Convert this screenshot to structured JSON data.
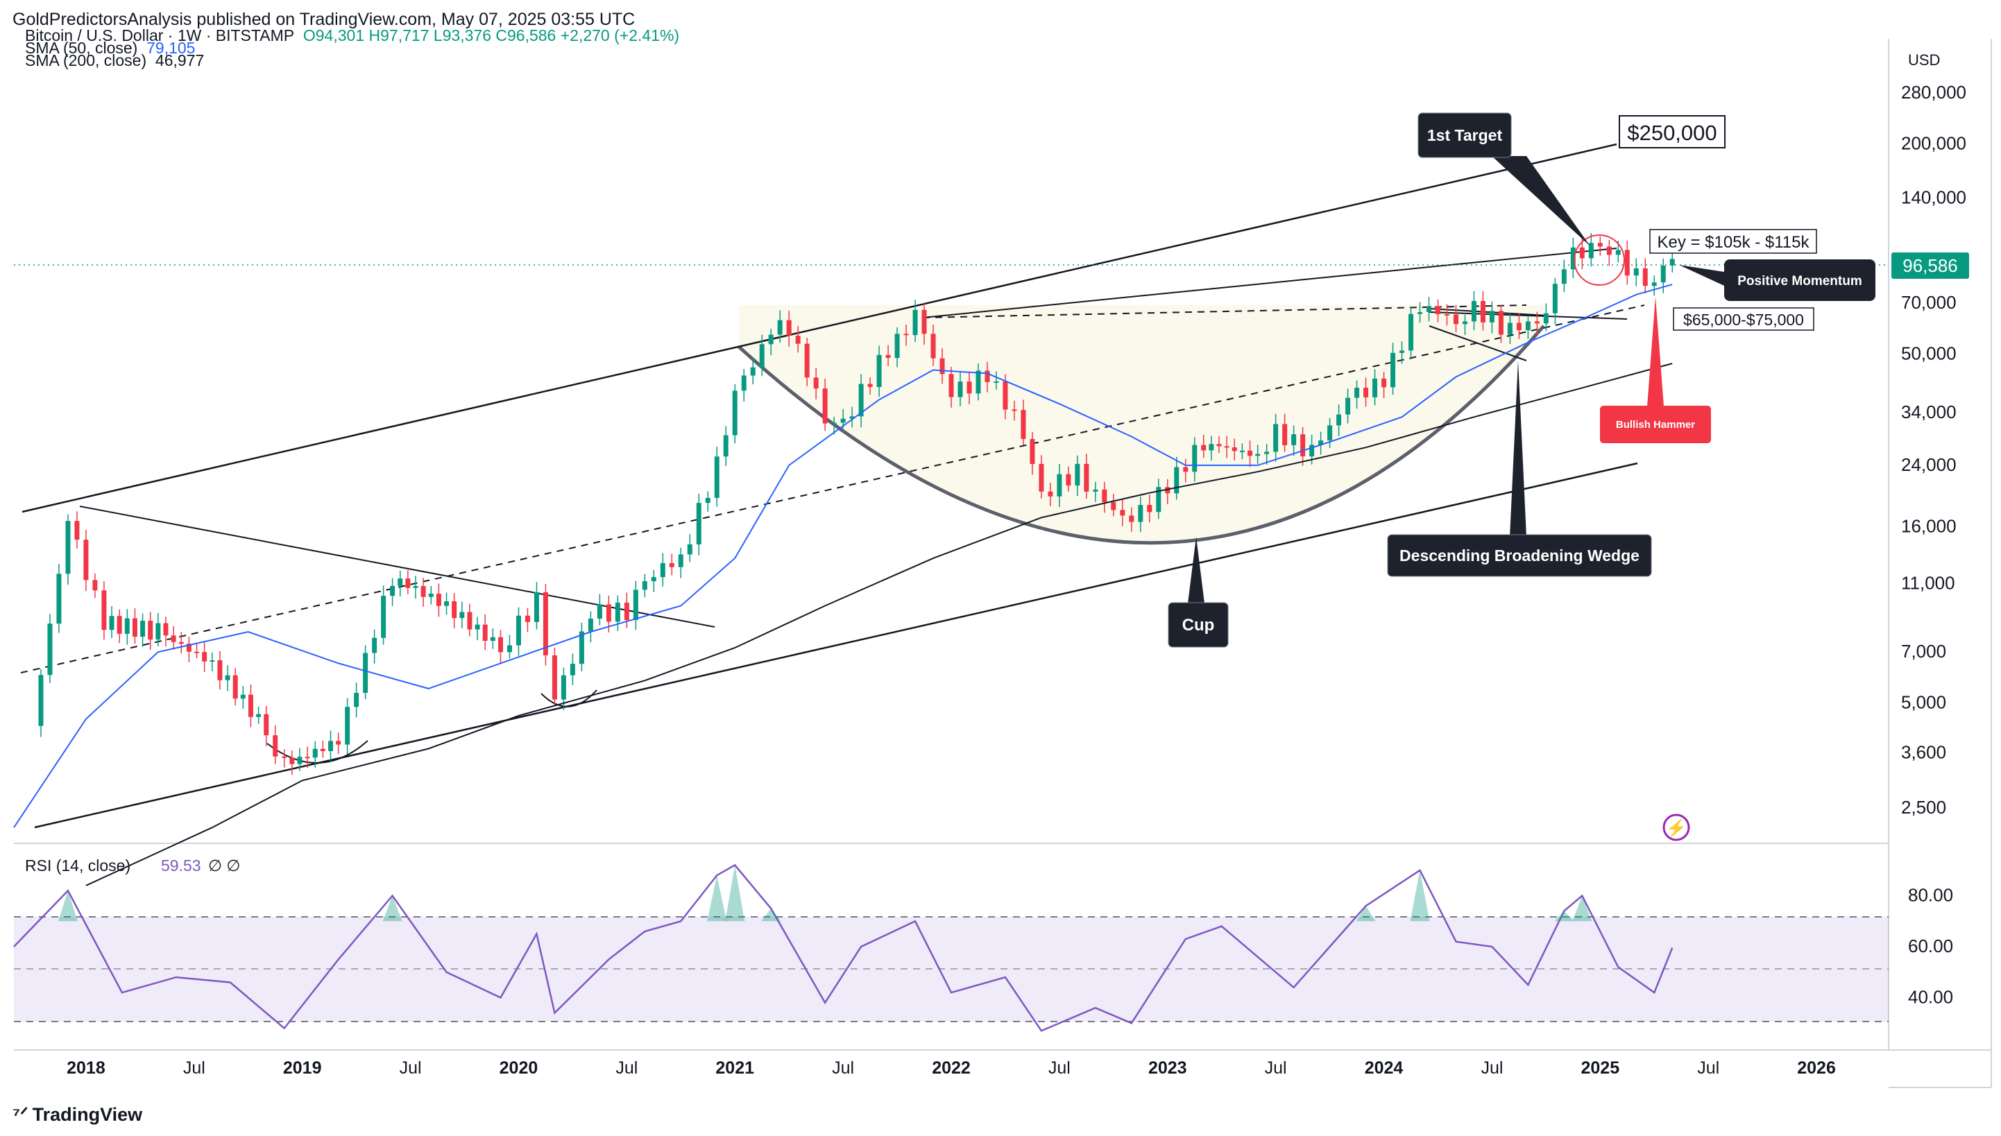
{
  "header": {
    "published_by": "GoldPredictorsAnalysis published on TradingView.com, May 07, 2025 03:55 UTC"
  },
  "legend": {
    "symbol": "Bitcoin / U.S. Dollar · 1W · BITSTAMP",
    "ohlc": "O94,301  H97,717  L93,376  C96,586  +2,270 (+2.41%)",
    "sma50_label": "SMA (50, close)",
    "sma50_value": "79,105",
    "sma200_label": "SMA (200, close)",
    "sma200_value": "46,977",
    "rsi_label": "RSI (14, close)",
    "rsi_value": "59.53",
    "rsi_extra": "∅  ∅"
  },
  "price_axis": {
    "currency": "USD",
    "ticks": [
      "280,000",
      "200,000",
      "140,000",
      "96,586",
      "70,000",
      "50,000",
      "34,000",
      "24,000",
      "16,000",
      "11,000",
      "7,000",
      "5,000",
      "3,600",
      "2,500"
    ],
    "current_price": "96,586"
  },
  "rsi_axis": {
    "ticks": [
      "80.00",
      "60.00",
      "40.00"
    ]
  },
  "time_axis": {
    "ticks": [
      "2018",
      "Jul",
      "2019",
      "Jul",
      "2020",
      "Jul",
      "2021",
      "Jul",
      "2022",
      "Jul",
      "2023",
      "Jul",
      "2024",
      "Jul",
      "2025",
      "Jul",
      "2026"
    ]
  },
  "annotations": {
    "first_target": "1st Target",
    "target_price": "$250,000",
    "key_zone": "Key = $105k - $115k",
    "positive_momentum": "Positive Momentum",
    "support_zone": "$65,000-$75,000",
    "bullish_hammer": "Bullish Hammer",
    "cup": "Cup",
    "wedge": "Descending Broadening Wedge"
  },
  "footer": {
    "brand": "TradingView"
  },
  "colors": {
    "up": "#089981",
    "down": "#f23645",
    "sma50": "#2962ff",
    "sma200": "#131722",
    "rsi": "#7e57c2",
    "callout": "#1e222d",
    "hammer": "#f23645"
  },
  "chart_data": {
    "type": "line",
    "title": "Bitcoin / U.S. Dollar · 1W · BITSTAMP",
    "scale": "log",
    "ylim": [
      2000,
      400000
    ],
    "x_start": "2017-09",
    "x_end": "2026-05",
    "series": [
      {
        "name": "Bitcoin / U.S. Dollar",
        "points": [
          [
            "2017-10",
            4300
          ],
          [
            "2017-12",
            16500
          ],
          [
            "2018-02",
            8500
          ],
          [
            "2018-05",
            8000
          ],
          [
            "2018-08",
            6500
          ],
          [
            "2018-11",
            4200
          ],
          [
            "2018-12",
            3300
          ],
          [
            "2019-03",
            3900
          ],
          [
            "2019-05",
            8000
          ],
          [
            "2019-06",
            11500
          ],
          [
            "2019-09",
            9500
          ],
          [
            "2019-12",
            7200
          ],
          [
            "2020-02",
            9800
          ],
          [
            "2020-03",
            5000
          ],
          [
            "2020-05",
            9000
          ],
          [
            "2020-07",
            9200
          ],
          [
            "2020-08",
            11500
          ],
          [
            "2020-10",
            13000
          ],
          [
            "2020-12",
            24000
          ],
          [
            "2021-01",
            38000
          ],
          [
            "2021-03",
            58000
          ],
          [
            "2021-04",
            60000
          ],
          [
            "2021-06",
            33000
          ],
          [
            "2021-07",
            32000
          ],
          [
            "2021-09",
            47000
          ],
          [
            "2021-11",
            64000
          ],
          [
            "2022-01",
            38000
          ],
          [
            "2022-03",
            44000
          ],
          [
            "2022-05",
            30000
          ],
          [
            "2022-06",
            20000
          ],
          [
            "2022-08",
            23000
          ],
          [
            "2022-09",
            19500
          ],
          [
            "2022-11",
            16500
          ],
          [
            "2023-01",
            21000
          ],
          [
            "2023-03",
            28000
          ],
          [
            "2023-06",
            25500
          ],
          [
            "2023-07",
            30000
          ],
          [
            "2023-09",
            26000
          ],
          [
            "2023-11",
            37000
          ],
          [
            "2024-01",
            42000
          ],
          [
            "2024-03",
            70000
          ],
          [
            "2024-05",
            62000
          ],
          [
            "2024-06",
            68000
          ],
          [
            "2024-08",
            58000
          ],
          [
            "2024-10",
            64000
          ],
          [
            "2024-11",
            91000
          ],
          [
            "2024-12",
            100000
          ],
          [
            "2025-01",
            104000
          ],
          [
            "2025-02",
            96000
          ],
          [
            "2025-03",
            83000
          ],
          [
            "2025-04",
            78000
          ],
          [
            "2025-05",
            96586
          ]
        ]
      },
      {
        "name": "SMA (50, close)",
        "points": [
          [
            "2017-09",
            2200
          ],
          [
            "2018-01",
            4500
          ],
          [
            "2018-05",
            7000
          ],
          [
            "2018-10",
            8000
          ],
          [
            "2019-03",
            6500
          ],
          [
            "2019-08",
            5500
          ],
          [
            "2019-12",
            6500
          ],
          [
            "2020-05",
            8000
          ],
          [
            "2020-10",
            9500
          ],
          [
            "2021-01",
            13000
          ],
          [
            "2021-04",
            24000
          ],
          [
            "2021-09",
            37000
          ],
          [
            "2021-12",
            45000
          ],
          [
            "2022-03",
            44000
          ],
          [
            "2022-07",
            36000
          ],
          [
            "2022-11",
            29000
          ],
          [
            "2023-02",
            24000
          ],
          [
            "2023-06",
            24000
          ],
          [
            "2023-10",
            28000
          ],
          [
            "2024-02",
            33000
          ],
          [
            "2024-05",
            43000
          ],
          [
            "2024-09",
            54000
          ],
          [
            "2024-12",
            63000
          ],
          [
            "2025-03",
            74000
          ],
          [
            "2025-05",
            79105
          ]
        ]
      },
      {
        "name": "SMA (200, close)",
        "points": [
          [
            "2018-01",
            1500
          ],
          [
            "2018-08",
            2200
          ],
          [
            "2019-01",
            3000
          ],
          [
            "2019-08",
            3700
          ],
          [
            "2020-01",
            4600
          ],
          [
            "2020-08",
            5800
          ],
          [
            "2021-01",
            7200
          ],
          [
            "2021-06",
            9500
          ],
          [
            "2021-12",
            13000
          ],
          [
            "2022-06",
            17000
          ],
          [
            "2022-12",
            20000
          ],
          [
            "2023-06",
            23000
          ],
          [
            "2023-12",
            27000
          ],
          [
            "2024-06",
            33000
          ],
          [
            "2024-12",
            40000
          ],
          [
            "2025-05",
            46977
          ]
        ]
      }
    ],
    "rsi": {
      "name": "RSI (14, close)",
      "ylim": [
        20,
        100
      ],
      "levels": [
        70,
        50,
        30
      ],
      "points": [
        [
          "2017-09",
          60
        ],
        [
          "2017-12",
          82
        ],
        [
          "2018-03",
          42
        ],
        [
          "2018-06",
          48
        ],
        [
          "2018-09",
          46
        ],
        [
          "2018-12",
          28
        ],
        [
          "2019-03",
          55
        ],
        [
          "2019-06",
          80
        ],
        [
          "2019-09",
          50
        ],
        [
          "2019-12",
          40
        ],
        [
          "2020-02",
          65
        ],
        [
          "2020-03",
          34
        ],
        [
          "2020-06",
          55
        ],
        [
          "2020-08",
          66
        ],
        [
          "2020-10",
          70
        ],
        [
          "2020-12",
          88
        ],
        [
          "2021-01",
          92
        ],
        [
          "2021-03",
          75
        ],
        [
          "2021-06",
          38
        ],
        [
          "2021-08",
          60
        ],
        [
          "2021-11",
          70
        ],
        [
          "2022-01",
          42
        ],
        [
          "2022-04",
          48
        ],
        [
          "2022-06",
          27
        ],
        [
          "2022-09",
          36
        ],
        [
          "2022-11",
          30
        ],
        [
          "2023-02",
          63
        ],
        [
          "2023-04",
          68
        ],
        [
          "2023-08",
          44
        ],
        [
          "2023-10",
          60
        ],
        [
          "2023-12",
          76
        ],
        [
          "2024-03",
          90
        ],
        [
          "2024-05",
          62
        ],
        [
          "2024-07",
          60
        ],
        [
          "2024-09",
          45
        ],
        [
          "2024-11",
          74
        ],
        [
          "2024-12",
          80
        ],
        [
          "2025-02",
          52
        ],
        [
          "2025-04",
          42
        ],
        [
          "2025-05",
          59.53
        ]
      ]
    }
  }
}
